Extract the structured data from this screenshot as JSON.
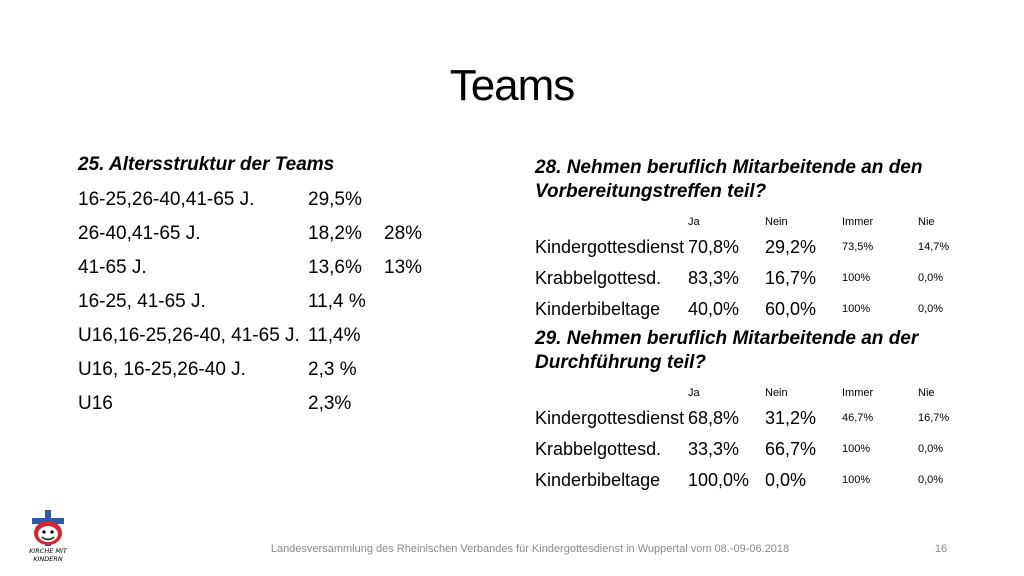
{
  "slide": {
    "title": "Teams"
  },
  "age_structure": {
    "heading": "25. Altersstruktur der Teams",
    "rows": [
      {
        "label": "16-25,26-40,41-65 J.",
        "v1": "29,5%",
        "v2": ""
      },
      {
        "label": "26-40,41-65 J.",
        "v1": "18,2%",
        "v2": "28%"
      },
      {
        "label": "41-65 J.",
        "v1": "13,6%",
        "v2": "13%"
      },
      {
        "label": "16-25, 41-65 J.",
        "v1": "11,4 %",
        "v2": ""
      },
      {
        "label": "U16,16-25,26-40, 41-65 J.",
        "v1": "11,4%",
        "v2": ""
      },
      {
        "label": "U16, 16-25,26-40 J.",
        "v1": "2,3 %",
        "v2": ""
      },
      {
        "label": "U16",
        "v1": "2,3%",
        "v2": ""
      }
    ]
  },
  "question28": {
    "heading": "28. Nehmen beruflich Mitarbeitende an den Vorbereitungstreffen teil?",
    "columns": [
      "Ja",
      "Nein",
      "Immer",
      "Nie"
    ],
    "rows": [
      {
        "label": "Kindergottesdienst",
        "ja": "70,8%",
        "nein": "29,2%",
        "immer": "73,5%",
        "nie": "14,7%"
      },
      {
        "label": "Krabbelgottesd.",
        "ja": "83,3%",
        "nein": "16,7%",
        "immer": "100%",
        "nie": "0,0%"
      },
      {
        "label": "Kinderbibeltage",
        "ja": "40,0%",
        "nein": "60,0%",
        "immer": "100%",
        "nie": "0,0%"
      }
    ]
  },
  "question29": {
    "heading": "29. Nehmen beruflich Mitarbeitende an der Durchführung teil?",
    "columns": [
      "Ja",
      "Nein",
      "Immer",
      "Nie"
    ],
    "rows": [
      {
        "label": "Kindergottesdienst",
        "ja": "68,8%",
        "nein": "31,2%",
        "immer": "46,7%",
        "nie": "16,7%"
      },
      {
        "label": "Krabbelgottesd.",
        "ja": "33,3%",
        "nein": "66,7%",
        "immer": "100%",
        "nie": "0,0%"
      },
      {
        "label": "Kinderbibeltage",
        "ja": "100,0%",
        "nein": "0,0%",
        "immer": "100%",
        "nie": "0,0%"
      }
    ]
  },
  "footer": {
    "text": "Landesversammlung des Rheinischen Verbandes für Kindergottesdienst in Wuppertal vom 08.-09-06.2018",
    "page_number": "16",
    "logo_text_line1": "KIRCHE MIT",
    "logo_text_line2": "KINDERN",
    "logo_icon": "kirche-mit-kindern-logo"
  },
  "colors": {
    "text": "#000000",
    "footer_text": "#8a8a8a",
    "logo_blue": "#2a5aa8",
    "logo_red": "#d7262b"
  }
}
